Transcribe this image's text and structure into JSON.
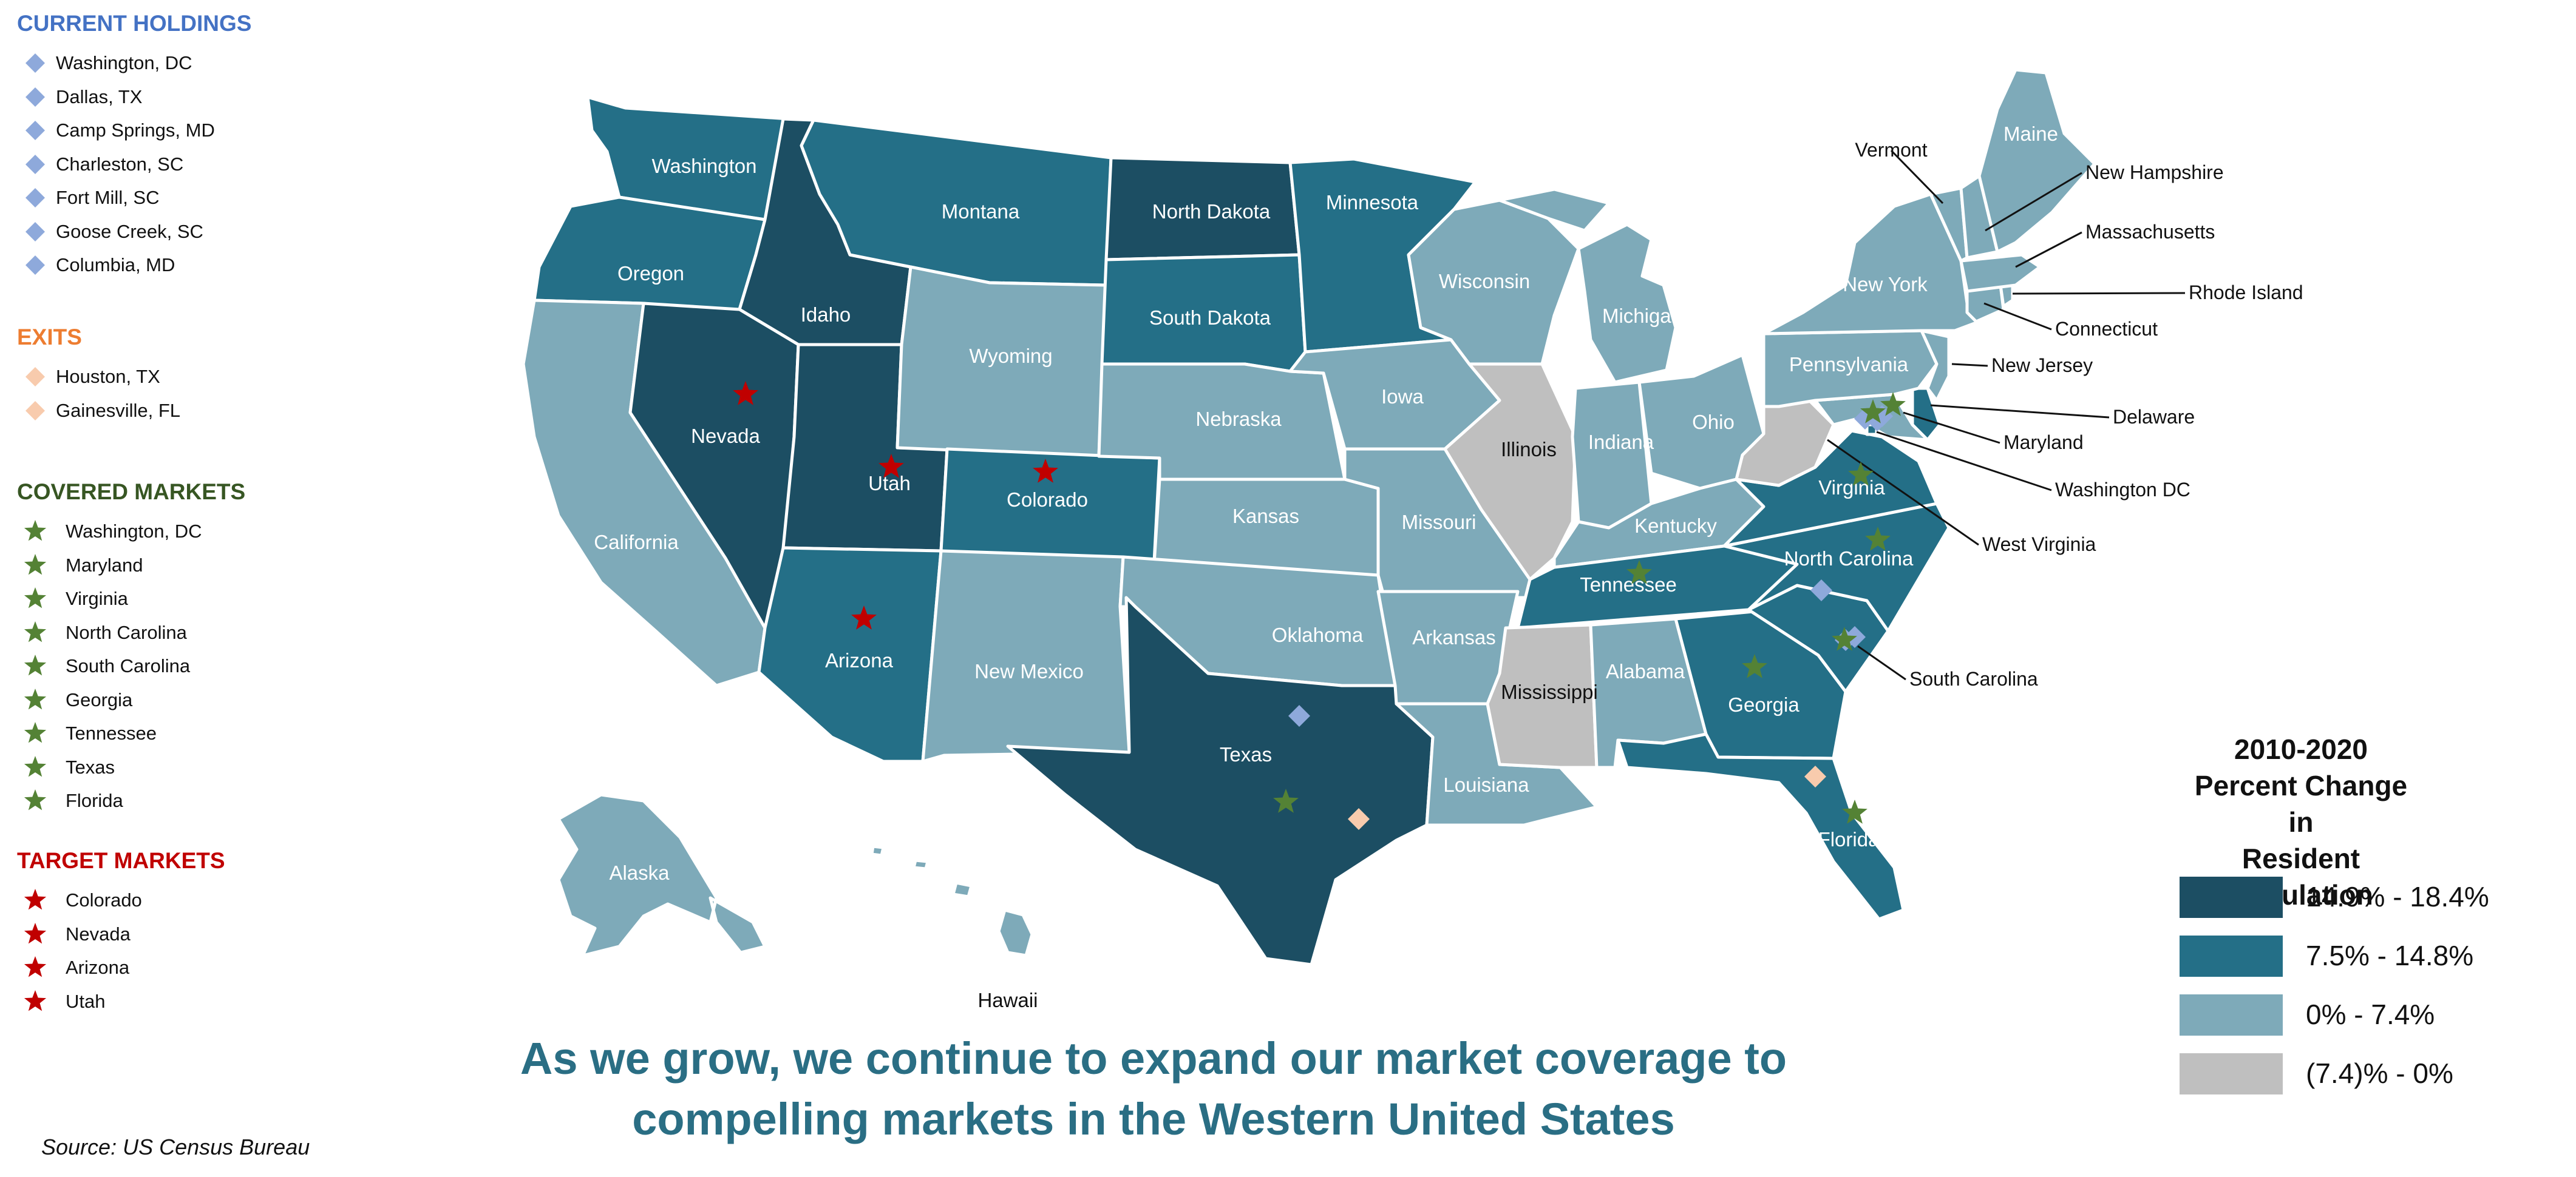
{
  "legend": {
    "current_holdings": {
      "title": "CURRENT HOLDINGS",
      "color": "#4472c4",
      "marker": "diamond",
      "marker_color": "#8ea9db",
      "items": [
        "Washington, DC",
        "Dallas, TX",
        "Camp Springs, MD",
        "Charleston, SC",
        "Fort Mill, SC",
        "Goose Creek, SC",
        "Columbia, MD"
      ]
    },
    "exits": {
      "title": "EXITS",
      "color": "#ed7d31",
      "marker": "diamond",
      "marker_color": "#f8cbad",
      "items": [
        "Houston, TX",
        "Gainesville, FL"
      ]
    },
    "covered_markets": {
      "title": "COVERED MARKETS",
      "color": "#375623",
      "marker": "star",
      "marker_color": "#548235",
      "items": [
        "Washington, DC",
        "Maryland",
        "Virginia",
        "North Carolina",
        "South Carolina",
        "Georgia",
        "Tennessee",
        "Texas",
        "Florida"
      ]
    },
    "target_markets": {
      "title": "TARGET MARKETS",
      "color": "#c00000",
      "marker": "star",
      "marker_color": "#c00000",
      "items": [
        "Colorado",
        "Nevada",
        "Arizona",
        "Utah"
      ]
    }
  },
  "scale": {
    "title_lines": [
      "2010-2020",
      "Percent Change in",
      "Resident Population"
    ],
    "bins": [
      {
        "label": "14.9% - 18.4%",
        "color": "#1c4e63"
      },
      {
        "label": "7.5% - 14.8%",
        "color": "#246f87"
      },
      {
        "label": "0% - 7.4%",
        "color": "#7eaab9"
      },
      {
        "label": "(7.4)% - 0%",
        "color": "#bfbfbf"
      }
    ]
  },
  "states": [
    {
      "id": "WA",
      "name": "Washington",
      "bin": 1
    },
    {
      "id": "OR",
      "name": "Oregon",
      "bin": 1
    },
    {
      "id": "CA",
      "name": "California",
      "bin": 2
    },
    {
      "id": "ID",
      "name": "Idaho",
      "bin": 0
    },
    {
      "id": "NV",
      "name": "Nevada",
      "bin": 0
    },
    {
      "id": "UT",
      "name": "Utah",
      "bin": 0
    },
    {
      "id": "AZ",
      "name": "Arizona",
      "bin": 1
    },
    {
      "id": "MT",
      "name": "Montana",
      "bin": 1
    },
    {
      "id": "WY",
      "name": "Wyoming",
      "bin": 2
    },
    {
      "id": "CO",
      "name": "Colorado",
      "bin": 1
    },
    {
      "id": "NM",
      "name": "New Mexico",
      "bin": 2
    },
    {
      "id": "ND",
      "name": "North Dakota",
      "bin": 0
    },
    {
      "id": "SD",
      "name": "South Dakota",
      "bin": 1
    },
    {
      "id": "NE",
      "name": "Nebraska",
      "bin": 2
    },
    {
      "id": "KS",
      "name": "Kansas",
      "bin": 2
    },
    {
      "id": "OK",
      "name": "Oklahoma",
      "bin": 2
    },
    {
      "id": "TX",
      "name": "Texas",
      "bin": 0
    },
    {
      "id": "MN",
      "name": "Minnesota",
      "bin": 1
    },
    {
      "id": "IA",
      "name": "Iowa",
      "bin": 2
    },
    {
      "id": "MO",
      "name": "Missouri",
      "bin": 2
    },
    {
      "id": "AR",
      "name": "Arkansas",
      "bin": 2
    },
    {
      "id": "LA",
      "name": "Louisiana",
      "bin": 2
    },
    {
      "id": "WI",
      "name": "Wisconsin",
      "bin": 2
    },
    {
      "id": "IL",
      "name": "Illinois",
      "bin": 3
    },
    {
      "id": "MI",
      "name": "Michigan",
      "bin": 2
    },
    {
      "id": "IN",
      "name": "Indiana",
      "bin": 2
    },
    {
      "id": "OH",
      "name": "Ohio",
      "bin": 2
    },
    {
      "id": "KY",
      "name": "Kentucky",
      "bin": 2
    },
    {
      "id": "TN",
      "name": "Tennessee",
      "bin": 1
    },
    {
      "id": "MS",
      "name": "Mississippi",
      "bin": 3
    },
    {
      "id": "AL",
      "name": "Alabama",
      "bin": 2
    },
    {
      "id": "GA",
      "name": "Georgia",
      "bin": 1
    },
    {
      "id": "FL",
      "name": "Florida",
      "bin": 1
    },
    {
      "id": "SC",
      "name": "South Carolina",
      "bin": 1
    },
    {
      "id": "NC",
      "name": "North Carolina",
      "bin": 1
    },
    {
      "id": "VA",
      "name": "Virginia",
      "bin": 1
    },
    {
      "id": "WV",
      "name": "West Virginia",
      "bin": 3
    },
    {
      "id": "MD",
      "name": "Maryland",
      "bin": 2
    },
    {
      "id": "DE",
      "name": "Delaware",
      "bin": 1
    },
    {
      "id": "DC",
      "name": "Washington DC",
      "bin": 1
    },
    {
      "id": "PA",
      "name": "Pennsylvania",
      "bin": 2
    },
    {
      "id": "NJ",
      "name": "New Jersey",
      "bin": 2
    },
    {
      "id": "NY",
      "name": "New York",
      "bin": 2
    },
    {
      "id": "CT",
      "name": "Connecticut",
      "bin": 2
    },
    {
      "id": "RI",
      "name": "Rhode Island",
      "bin": 2
    },
    {
      "id": "MA",
      "name": "Massachusetts",
      "bin": 2
    },
    {
      "id": "VT",
      "name": "Vermont",
      "bin": 2
    },
    {
      "id": "NH",
      "name": "New Hampshire",
      "bin": 2
    },
    {
      "id": "ME",
      "name": "Maine",
      "bin": 2
    },
    {
      "id": "AK",
      "name": "Alaska",
      "bin": 2
    },
    {
      "id": "HI",
      "name": "Hawaii",
      "bin": 2
    }
  ],
  "headline": [
    "As we grow, we continue to expand our market coverage to",
    "compelling markets in the Western United States"
  ],
  "source": "Source: US Census Bureau"
}
